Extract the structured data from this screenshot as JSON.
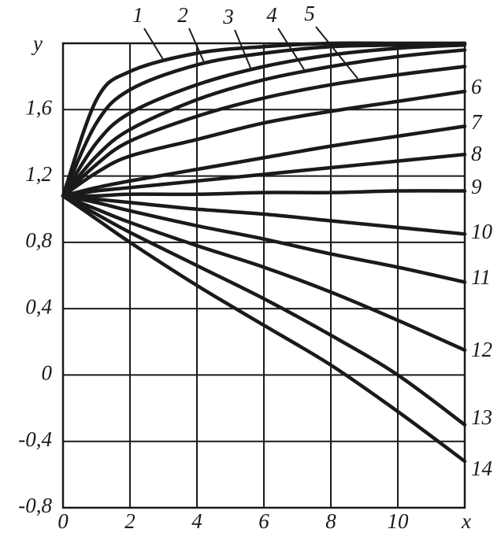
{
  "chart_data": {
    "type": "line",
    "xlabel": "x",
    "ylabel": "y",
    "x": [
      0,
      1,
      2,
      4,
      6,
      8,
      10,
      12
    ],
    "series": [
      {
        "name": "1",
        "color": "#1a1a1a",
        "values": [
          1.08,
          1.66,
          1.83,
          1.94,
          1.98,
          2.0,
          2.0,
          2.0
        ]
      },
      {
        "name": "2",
        "color": "#1a1a1a",
        "values": [
          1.08,
          1.52,
          1.72,
          1.87,
          1.94,
          1.98,
          1.99,
          2.0
        ]
      },
      {
        "name": "3",
        "color": "#1a1a1a",
        "values": [
          1.08,
          1.4,
          1.58,
          1.75,
          1.86,
          1.93,
          1.97,
          1.99
        ]
      },
      {
        "name": "4",
        "color": "#1a1a1a",
        "values": [
          1.08,
          1.32,
          1.48,
          1.66,
          1.78,
          1.86,
          1.92,
          1.96
        ]
      },
      {
        "name": "5",
        "color": "#1a1a1a",
        "values": [
          1.08,
          1.27,
          1.41,
          1.56,
          1.67,
          1.75,
          1.81,
          1.86
        ]
      },
      {
        "name": "6",
        "color": "#1a1a1a",
        "values": [
          1.08,
          1.22,
          1.32,
          1.42,
          1.52,
          1.59,
          1.65,
          1.71
        ]
      },
      {
        "name": "7",
        "color": "#1a1a1a",
        "values": [
          1.08,
          1.13,
          1.17,
          1.24,
          1.31,
          1.38,
          1.44,
          1.5
        ]
      },
      {
        "name": "8",
        "color": "#1a1a1a",
        "values": [
          1.08,
          1.11,
          1.13,
          1.17,
          1.21,
          1.25,
          1.29,
          1.33
        ]
      },
      {
        "name": "9",
        "color": "#1a1a1a",
        "values": [
          1.08,
          1.08,
          1.09,
          1.09,
          1.1,
          1.1,
          1.11,
          1.11
        ]
      },
      {
        "name": "10",
        "color": "#1a1a1a",
        "values": [
          1.08,
          1.06,
          1.04,
          1.0,
          0.97,
          0.93,
          0.89,
          0.85
        ]
      },
      {
        "name": "11",
        "color": "#1a1a1a",
        "values": [
          1.08,
          1.04,
          0.99,
          0.9,
          0.82,
          0.73,
          0.65,
          0.56
        ]
      },
      {
        "name": "12",
        "color": "#1a1a1a",
        "values": [
          1.08,
          1.0,
          0.92,
          0.78,
          0.65,
          0.5,
          0.33,
          0.15
        ]
      },
      {
        "name": "13",
        "color": "#1a1a1a",
        "values": [
          1.08,
          0.97,
          0.86,
          0.66,
          0.46,
          0.24,
          0.0,
          -0.3
        ]
      },
      {
        "name": "14",
        "color": "#1a1a1a",
        "values": [
          1.08,
          0.94,
          0.8,
          0.54,
          0.3,
          0.06,
          -0.22,
          -0.52
        ]
      }
    ],
    "xlim": [
      0,
      12
    ],
    "ylim": [
      -0.8,
      2.0
    ],
    "xticks": [
      0,
      2,
      4,
      6,
      8,
      10
    ],
    "yticks": [
      {
        "value": -0.8,
        "label": "-0,8"
      },
      {
        "value": -0.4,
        "label": "-0,4"
      },
      0,
      {
        "value": 0.4,
        "label": "0,4"
      },
      {
        "value": 0.8,
        "label": "0,8"
      },
      {
        "value": 1.2,
        "label": "1,2"
      },
      {
        "value": 1.6,
        "label": "1,6"
      }
    ],
    "grid": true
  }
}
